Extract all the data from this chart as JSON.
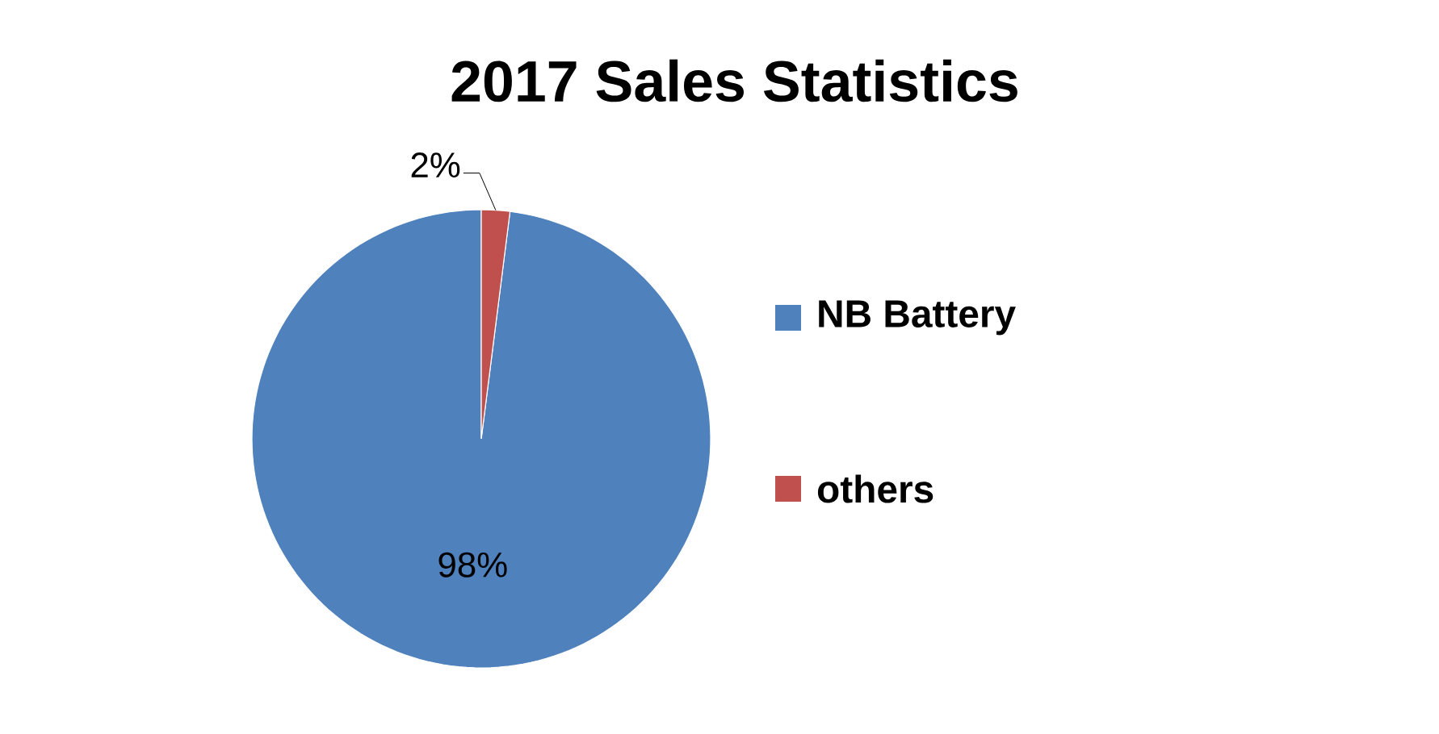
{
  "chart_data": {
    "type": "pie",
    "title": "2017 Sales Statistics",
    "categories": [
      "NB Battery",
      "others"
    ],
    "values": [
      98,
      2
    ],
    "colors": [
      "#4f81bd",
      "#c0504d"
    ],
    "value_labels": [
      "98%",
      "2%"
    ],
    "legend": "right"
  }
}
